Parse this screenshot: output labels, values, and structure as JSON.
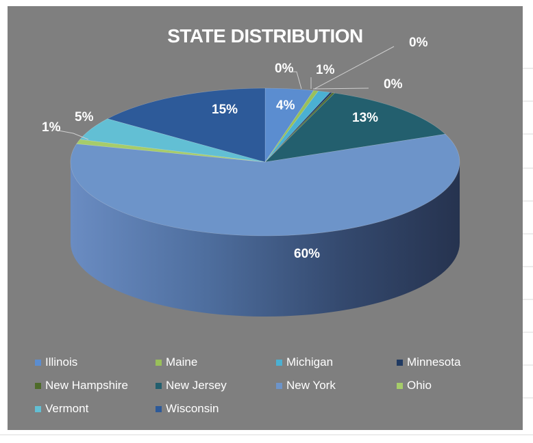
{
  "chart_data": {
    "type": "pie",
    "title": "STATE DISTRIBUTION",
    "categories": [
      "Illinois",
      "Maine",
      "Michigan",
      "Minnesota",
      "New Hampshire",
      "New Jersey",
      "New York",
      "Ohio",
      "Vermont",
      "Wisconsin"
    ],
    "values": [
      4,
      0.4,
      1,
      0.2,
      0.2,
      13,
      60,
      1,
      5,
      15
    ],
    "labels": [
      "4%",
      "0%",
      "1%",
      "0%",
      "0%",
      "13%",
      "60%",
      "1%",
      "5%",
      "15%"
    ],
    "colors": [
      "#5b8dd0",
      "#99c05a",
      "#4bb0d2",
      "#203a62",
      "#4e6b2a",
      "#235f6e",
      "#6d94c9",
      "#a6cc6a",
      "#62bfd4",
      "#2d5a99"
    ],
    "legend_position": "bottom",
    "style": "3d"
  }
}
